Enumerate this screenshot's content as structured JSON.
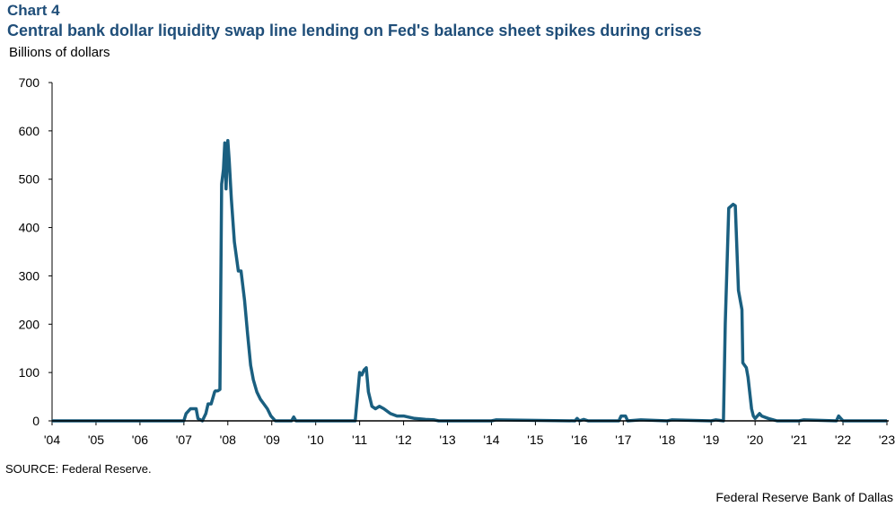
{
  "header": {
    "chart_label": "Chart 4",
    "title": "Central bank dollar liquidity swap line lending on Fed's balance sheet spikes during crises",
    "units": "Billions of dollars"
  },
  "footer": {
    "source": "SOURCE: Federal Reserve.",
    "credit": "Federal Reserve Bank of Dallas"
  },
  "chart_data": {
    "type": "line",
    "title": "Central bank dollar liquidity swap line lending on Fed's balance sheet spikes during crises",
    "ylabel": "Billions of dollars",
    "xlim": [
      2004,
      2023
    ],
    "ylim": [
      0,
      700
    ],
    "yticks": [
      0,
      100,
      200,
      300,
      400,
      500,
      600,
      700
    ],
    "xticks": [
      {
        "v": 2004,
        "label": "'04"
      },
      {
        "v": 2005,
        "label": "'05"
      },
      {
        "v": 2006,
        "label": "'06"
      },
      {
        "v": 2007,
        "label": "'07"
      },
      {
        "v": 2008,
        "label": "'08"
      },
      {
        "v": 2009,
        "label": "'09"
      },
      {
        "v": 2010,
        "label": "'10"
      },
      {
        "v": 2011,
        "label": "'11"
      },
      {
        "v": 2012,
        "label": "'12"
      },
      {
        "v": 2013,
        "label": "'13"
      },
      {
        "v": 2014,
        "label": "'14"
      },
      {
        "v": 2015,
        "label": "'15"
      },
      {
        "v": 2016,
        "label": "'16"
      },
      {
        "v": 2017,
        "label": "'17"
      },
      {
        "v": 2018,
        "label": "'18"
      },
      {
        "v": 2019,
        "label": "'19"
      },
      {
        "v": 2020,
        "label": "'20"
      },
      {
        "v": 2021,
        "label": "'21"
      },
      {
        "v": 2022,
        "label": "'22"
      },
      {
        "v": 2023,
        "label": "'23"
      }
    ],
    "grid": false,
    "color": "#1a5f80",
    "x": [
      2004,
      2007.0,
      2007.05,
      2007.15,
      2007.28,
      2007.32,
      2007.42,
      2007.5,
      2007.55,
      2007.62,
      2007.7,
      2007.72,
      2007.77,
      2007.82,
      2007.86,
      2007.9,
      2007.93,
      2007.96,
      2008.0,
      2008.03,
      2008.08,
      2008.15,
      2008.24,
      2008.3,
      2008.38,
      2008.45,
      2008.52,
      2008.58,
      2008.66,
      2008.74,
      2008.82,
      2008.9,
      2008.98,
      2009.08,
      2009.2,
      2009.45,
      2009.5,
      2009.55,
      2010.9,
      2011.0,
      2011.05,
      2011.1,
      2011.15,
      2011.2,
      2011.28,
      2011.36,
      2011.45,
      2011.55,
      2011.7,
      2011.85,
      2012.0,
      2012.1,
      2012.25,
      2012.5,
      2012.7,
      2012.8,
      2013.5,
      2014.0,
      2014.1,
      2015.9,
      2015.95,
      2016.0,
      2016.1,
      2016.2,
      2016.9,
      2016.95,
      2017.05,
      2017.1,
      2017.4,
      2018.0,
      2018.1,
      2019.0,
      2019.1,
      2019.28,
      2019.32,
      2019.4,
      2019.5,
      2019.55,
      2019.62,
      2019.7,
      2019.72,
      2019.8,
      2019.84,
      2019.92,
      2019.96,
      2020.0,
      2020.1,
      2020.15,
      2020.3,
      2020.5,
      2021.0,
      2021.1,
      2021.85,
      2021.9,
      2021.95,
      2022.0,
      2023
    ],
    "y": [
      0,
      0,
      15,
      25,
      25,
      5,
      0,
      15,
      35,
      35,
      60,
      62,
      62,
      65,
      490,
      520,
      575,
      480,
      580,
      540,
      460,
      370,
      310,
      310,
      250,
      180,
      115,
      85,
      60,
      45,
      35,
      25,
      10,
      0,
      0,
      0,
      8,
      0,
      0,
      100,
      95,
      105,
      110,
      60,
      30,
      25,
      30,
      25,
      15,
      10,
      10,
      8,
      5,
      3,
      2,
      0,
      0,
      0,
      2,
      0,
      5,
      0,
      3,
      0,
      0,
      10,
      10,
      0,
      2,
      0,
      2,
      0,
      2,
      0,
      200,
      440,
      448,
      445,
      270,
      230,
      120,
      110,
      90,
      25,
      10,
      5,
      15,
      10,
      5,
      0,
      0,
      2,
      0,
      10,
      5,
      0,
      0
    ]
  }
}
